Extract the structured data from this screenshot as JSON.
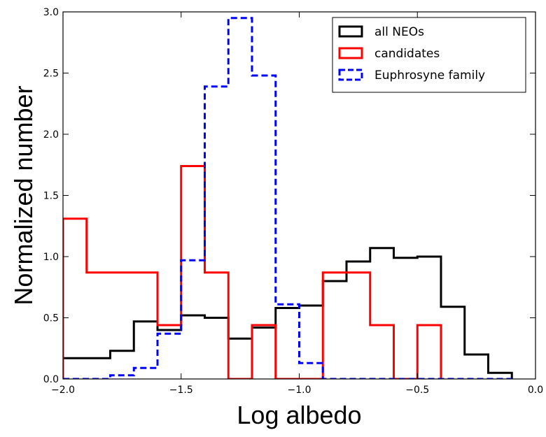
{
  "chart_data": {
    "type": "step-histogram",
    "xlabel": "Log albedo",
    "ylabel": "Normalized number",
    "xlim": [
      -2.0,
      0.0
    ],
    "ylim": [
      0.0,
      3.0
    ],
    "xticks": [
      -2.0,
      -1.5,
      -1.0,
      -0.5,
      0.0
    ],
    "xtick_labels": [
      "−2.0",
      "−1.5",
      "−1.0",
      "−0.5",
      "0.0"
    ],
    "yticks": [
      0.0,
      0.5,
      1.0,
      1.5,
      2.0,
      2.5,
      3.0
    ],
    "ytick_labels": [
      "0.0",
      "0.5",
      "1.0",
      "1.5",
      "2.0",
      "2.5",
      "3.0"
    ],
    "grid": false,
    "legend_position": "top-right",
    "bin_edges": [
      -2.0,
      -1.9,
      -1.8,
      -1.7,
      -1.6,
      -1.5,
      -1.4,
      -1.3,
      -1.2,
      -1.1,
      -1.0,
      -0.9,
      -0.8,
      -0.7,
      -0.6,
      -0.5,
      -0.4,
      -0.3,
      -0.2,
      -0.1,
      0.0
    ],
    "series": [
      {
        "name": "all NEOs",
        "color": "#000000",
        "style": "solid",
        "x_start": -2.0,
        "x_end": -0.1,
        "values": [
          0.17,
          0.17,
          0.23,
          0.47,
          0.4,
          0.52,
          0.5,
          0.33,
          0.42,
          0.58,
          0.6,
          0.8,
          0.96,
          1.07,
          0.99,
          1.0,
          0.59,
          0.2,
          0.05
        ]
      },
      {
        "name": "candidates",
        "color": "#ff0000",
        "style": "solid",
        "x_start": -2.0,
        "x_end": -0.4,
        "values": [
          1.31,
          0.87,
          0.87,
          0.87,
          0.44,
          1.74,
          0.87,
          0.0,
          0.44,
          0.0,
          0.0,
          0.87,
          0.87,
          0.44,
          0.0,
          0.44
        ]
      },
      {
        "name": "Euphrosyne family",
        "color": "#0000ff",
        "style": "dashed",
        "x_start": -2.0,
        "x_end": -0.1,
        "values": [
          0.0,
          0.0,
          0.03,
          0.09,
          0.37,
          0.97,
          2.39,
          2.95,
          2.48,
          0.61,
          0.13,
          0.0,
          0.0,
          0.0,
          0.0,
          0.0,
          0.0,
          0.0,
          0.0
        ]
      }
    ]
  }
}
